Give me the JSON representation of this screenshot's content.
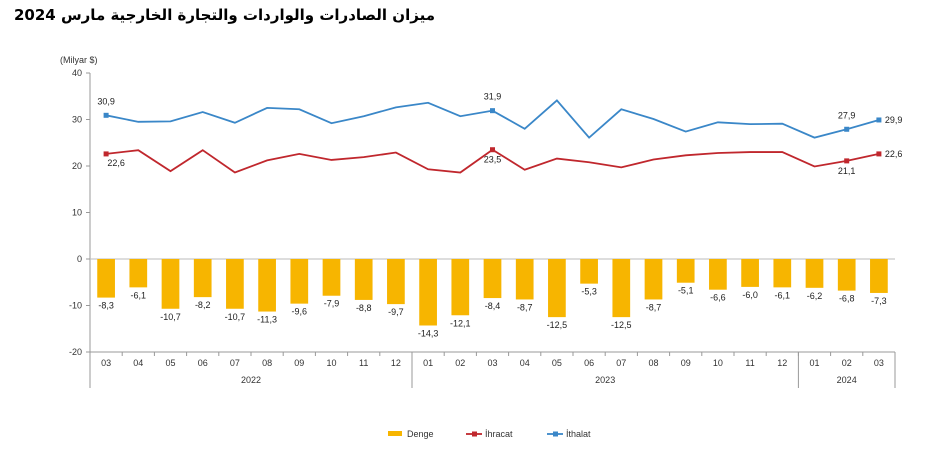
{
  "title": "ميزان الصادرات والواردات والتجارة الخارجية مارس 2024",
  "chart_data": {
    "type": "bar+line",
    "unit_label": "(Milyar $)",
    "ylim": [
      -20,
      40
    ],
    "yticks": [
      "40",
      "30",
      "20",
      "10",
      "0",
      "-10",
      "-20"
    ],
    "ytick_values": [
      40,
      30,
      20,
      10,
      0,
      -10,
      -20
    ],
    "categories": [
      "03",
      "04",
      "05",
      "06",
      "07",
      "08",
      "09",
      "10",
      "11",
      "12",
      "01",
      "02",
      "03",
      "04",
      "05",
      "06",
      "07",
      "08",
      "09",
      "10",
      "11",
      "12",
      "01",
      "02",
      "03"
    ],
    "year_groups": [
      {
        "label": "2022",
        "start": 0,
        "end": 9
      },
      {
        "label": "2023",
        "start": 10,
        "end": 21
      },
      {
        "label": "2024",
        "start": 22,
        "end": 24
      }
    ],
    "series": [
      {
        "name": "Denge",
        "type": "bar",
        "color": "#F7B500",
        "values": [
          -8.3,
          -6.1,
          -10.7,
          -8.2,
          -10.7,
          -11.3,
          -9.6,
          -7.9,
          -8.8,
          -9.7,
          -14.3,
          -12.1,
          -8.4,
          -8.7,
          -12.5,
          -5.3,
          -12.5,
          -8.7,
          -5.1,
          -6.6,
          -6.0,
          -6.1,
          -6.2,
          -6.8,
          -7.3
        ],
        "labels": [
          "-8,3",
          "-6,1",
          "-10,7",
          "-8,2",
          "-10,7",
          "-11,3",
          "-9,6",
          "-7,9",
          "-8,8",
          "-9,7",
          "-14,3",
          "-12,1",
          "-8,4",
          "-8,7",
          "-12,5",
          "-5,3",
          "-12,5",
          "-8,7",
          "-5,1",
          "-6,6",
          "-6,0",
          "-6,1",
          "-6,2",
          "-6,8",
          "-7,3"
        ]
      },
      {
        "name": "İhracat",
        "type": "line",
        "color": "#C0272D",
        "values": [
          22.6,
          23.4,
          18.9,
          23.4,
          18.6,
          21.2,
          22.6,
          21.3,
          21.9,
          22.9,
          19.3,
          18.6,
          23.5,
          19.2,
          21.6,
          20.8,
          19.7,
          21.4,
          22.3,
          22.8,
          23.0,
          23.0,
          19.9,
          21.1,
          22.6
        ],
        "labeled": {
          "0": "22,6",
          "12": "23,5",
          "23": "21,1",
          "24": "22,6"
        }
      },
      {
        "name": "İthalat",
        "type": "line",
        "color": "#3A87C8",
        "values": [
          30.9,
          29.5,
          29.6,
          31.6,
          29.3,
          32.5,
          32.2,
          29.2,
          30.7,
          32.6,
          33.6,
          30.7,
          31.9,
          28.0,
          34.1,
          26.1,
          32.2,
          30.1,
          27.4,
          29.4,
          29.0,
          29.1,
          26.1,
          27.9,
          29.9
        ],
        "labeled": {
          "0": "30,9",
          "12": "31,9",
          "23": "27,9",
          "24": "29,9"
        }
      }
    ],
    "legend_position": "bottom-center",
    "grid": false
  }
}
